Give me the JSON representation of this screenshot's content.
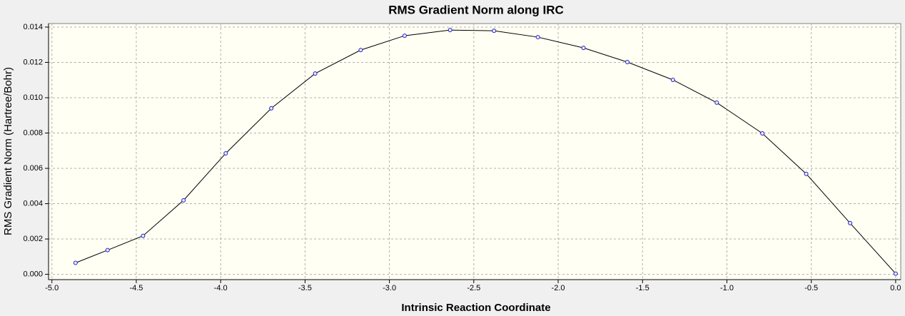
{
  "chart_data": {
    "type": "line",
    "title": "RMS Gradient Norm along IRC",
    "x_label": "Intrinsic Reaction Coordinate",
    "y_label": "RMS Gradient Norm (Hartree/Bohr)",
    "x": [
      -4.86,
      -4.67,
      -4.46,
      -4.22,
      -3.97,
      -3.7,
      -3.44,
      -3.17,
      -2.91,
      -2.64,
      -2.38,
      -2.12,
      -1.85,
      -1.59,
      -1.32,
      -1.06,
      -0.79,
      -0.53,
      -0.27,
      0.0
    ],
    "series": [
      {
        "name": "RMS Gradient Norm",
        "color": "#000000",
        "marker_color": "#2020c0",
        "values": [
          0.00065,
          0.00137,
          0.00218,
          0.00419,
          0.00685,
          0.0094,
          0.01137,
          0.0127,
          0.01351,
          0.01383,
          0.01379,
          0.01343,
          0.01282,
          0.01202,
          0.01101,
          0.00972,
          0.00798,
          0.00569,
          0.0029,
          4e-05
        ]
      }
    ],
    "xlim": [
      -5.02,
      0.03
    ],
    "ylim": [
      -0.0003,
      0.0142
    ],
    "xticks": [
      {
        "value": -5,
        "label": "-5.0"
      },
      -4.5,
      {
        "value": -4,
        "label": "-4.0"
      },
      -3.5,
      {
        "value": -3,
        "label": "-3.0"
      },
      -2.5,
      {
        "value": -2,
        "label": "-2.0"
      },
      -1.5,
      {
        "value": -1,
        "label": "-1.0"
      },
      -0.5,
      {
        "value": 0,
        "label": "0.0"
      }
    ],
    "yticks": [
      {
        "value": 0,
        "label": "0.000"
      },
      {
        "value": 0.002,
        "label": "0.002"
      },
      {
        "value": 0.004,
        "label": "0.004"
      },
      {
        "value": 0.006,
        "label": "0.006"
      },
      {
        "value": 0.008,
        "label": "0.008"
      },
      {
        "value": 0.01,
        "label": "0.010"
      },
      {
        "value": 0.012,
        "label": "0.012"
      },
      {
        "value": 0.014,
        "label": "0.014"
      }
    ],
    "grid": true
  }
}
